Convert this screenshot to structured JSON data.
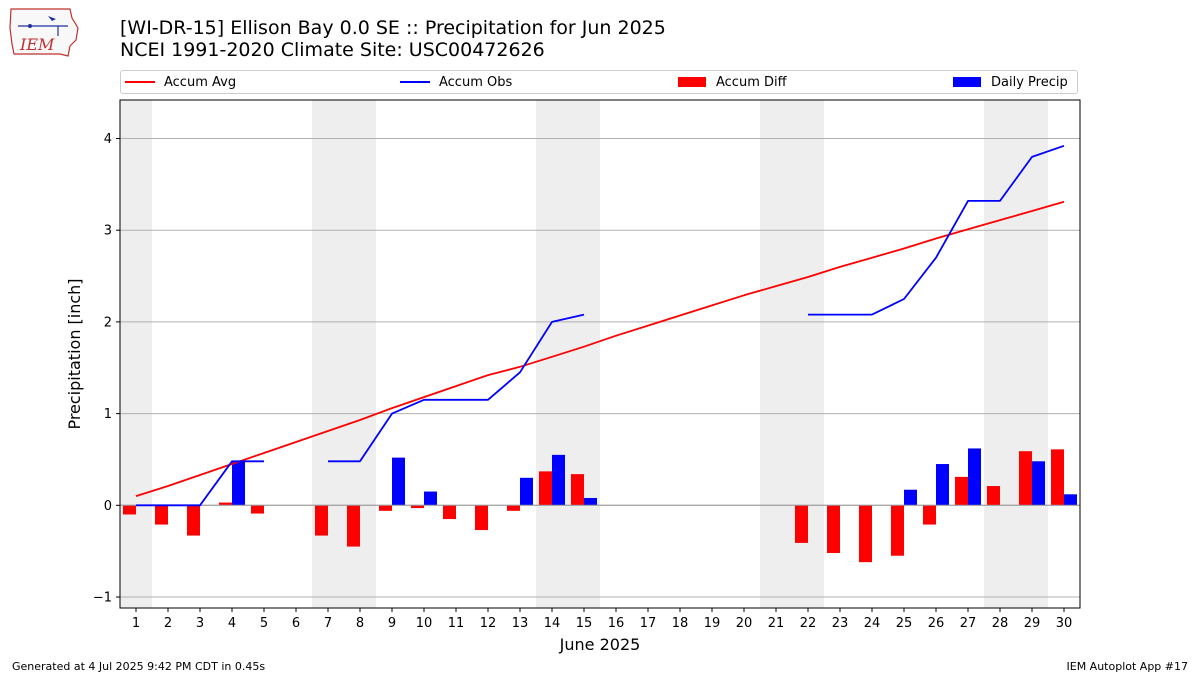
{
  "header": {
    "title_line1": "[WI-DR-15] Ellison Bay 0.0 SE :: Precipitation for Jun 2025",
    "title_line2": "NCEI 1991-2020 Climate Site: USC00472626",
    "logo_text": "IEM"
  },
  "legend": {
    "items": [
      {
        "label": "Accum Avg",
        "color": "#ff0000",
        "kind": "line"
      },
      {
        "label": "Accum Obs",
        "color": "#0000ff",
        "kind": "line"
      },
      {
        "label": "Accum Diff",
        "color": "#ff0000",
        "kind": "bar"
      },
      {
        "label": "Daily Precip",
        "color": "#0000ff",
        "kind": "bar"
      }
    ]
  },
  "footer": {
    "left": "Generated at 4 Jul 2025 9:42 PM CDT in 0.45s",
    "right": "IEM Autoplot App #17"
  },
  "chart_data": {
    "type": "bar",
    "xlabel": "June 2025",
    "ylabel": "Precipitation [inch]",
    "ylim": [
      -1.12,
      4.42
    ],
    "yticks": [
      -1,
      0,
      1,
      2,
      3,
      4
    ],
    "grid": "horizontal",
    "legend_position": "top",
    "categories": [
      "1",
      "2",
      "3",
      "4",
      "5",
      "6",
      "7",
      "8",
      "9",
      "10",
      "11",
      "12",
      "13",
      "14",
      "15",
      "16",
      "17",
      "18",
      "19",
      "20",
      "21",
      "22",
      "23",
      "24",
      "25",
      "26",
      "27",
      "28",
      "29",
      "30"
    ],
    "weekend_shading": [
      [
        1,
        1
      ],
      [
        7,
        8
      ],
      [
        14,
        15
      ],
      [
        21,
        22
      ],
      [
        28,
        29
      ]
    ],
    "shading_color": "#eeeeee",
    "series": [
      {
        "name": "Accum Avg",
        "type": "line",
        "color": "#ff0000",
        "values": [
          0.1,
          0.21,
          0.33,
          0.45,
          0.57,
          0.69,
          0.81,
          0.93,
          1.06,
          1.18,
          1.3,
          1.42,
          1.51,
          1.62,
          1.73,
          1.85,
          1.96,
          2.07,
          2.18,
          2.29,
          2.39,
          2.49,
          2.6,
          2.7,
          2.8,
          2.91,
          3.01,
          3.11,
          3.21,
          3.31
        ]
      },
      {
        "name": "Accum Obs",
        "type": "line",
        "color": "#0000ff",
        "values": [
          0.0,
          0.0,
          0.0,
          0.48,
          0.48,
          null,
          0.48,
          0.48,
          1.0,
          1.15,
          1.15,
          1.15,
          1.45,
          2.0,
          2.08,
          null,
          null,
          null,
          null,
          null,
          null,
          2.08,
          2.08,
          2.08,
          2.25,
          2.7,
          3.32,
          3.32,
          3.8,
          3.92
        ]
      },
      {
        "name": "Accum Diff",
        "type": "bar",
        "color": "#ff0000",
        "values": [
          -0.1,
          -0.21,
          -0.33,
          0.03,
          -0.09,
          null,
          -0.33,
          -0.45,
          -0.06,
          -0.03,
          -0.15,
          -0.27,
          -0.06,
          0.37,
          0.34,
          null,
          null,
          null,
          null,
          null,
          null,
          -0.41,
          -0.52,
          -0.62,
          -0.55,
          -0.21,
          0.31,
          0.21,
          0.59,
          0.61
        ]
      },
      {
        "name": "Daily Precip",
        "type": "bar",
        "color": "#0000ff",
        "values": [
          0,
          0,
          0,
          0.48,
          0,
          null,
          0,
          0,
          0.52,
          0.15,
          0,
          0,
          0.3,
          0.55,
          0.08,
          null,
          null,
          null,
          null,
          null,
          null,
          0,
          0,
          0,
          0.17,
          0.45,
          0.62,
          0,
          0.48,
          0.12
        ]
      }
    ]
  }
}
